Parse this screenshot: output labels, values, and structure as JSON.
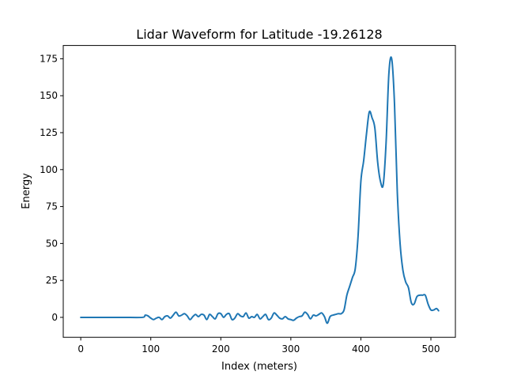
{
  "chart_data": {
    "type": "line",
    "title": "Lidar Waveform for Latitude -19.26128",
    "xlabel": "Index (meters)",
    "ylabel": "Energy",
    "xlim": [
      -25,
      535
    ],
    "ylim": [
      -13.5,
      184
    ],
    "xticks": [
      0,
      100,
      200,
      300,
      400,
      500
    ],
    "yticks": [
      0,
      25,
      50,
      75,
      100,
      125,
      150,
      175
    ],
    "grid": false,
    "legend": "none",
    "line_color": "#1f77b4",
    "series": [
      {
        "x": [
          0,
          30,
          60,
          88,
          92,
          96,
          100,
          104,
          108,
          112,
          116,
          120,
          124,
          128,
          132,
          136,
          140,
          144,
          148,
          152,
          156,
          160,
          164,
          168,
          172,
          176,
          180,
          184,
          188,
          192,
          196,
          200,
          204,
          208,
          212,
          216,
          220,
          224,
          228,
          232,
          236,
          240,
          244,
          248,
          252,
          256,
          260,
          264,
          268,
          272,
          276,
          280,
          284,
          288,
          292,
          296,
          300,
          304,
          308,
          312,
          316,
          320,
          324,
          328,
          332,
          336,
          340,
          344,
          348,
          352,
          356,
          360,
          364,
          368,
          372,
          376,
          380,
          384,
          388,
          392,
          396,
          400,
          404,
          408,
          412,
          416,
          420,
          424,
          428,
          432,
          436,
          440,
          444,
          448,
          452,
          456,
          460,
          464,
          468,
          472,
          476,
          480,
          484,
          488,
          492,
          496,
          500,
          504,
          508,
          511
        ],
        "y": [
          0,
          0,
          0,
          0,
          1.5,
          1,
          -0.5,
          -1.5,
          -0.5,
          0,
          -1.5,
          0.5,
          1,
          -0.5,
          1.5,
          3.5,
          1,
          1.5,
          2.5,
          1,
          -1.5,
          0.5,
          2,
          0.5,
          2,
          1.5,
          -1.5,
          2,
          0.5,
          -1,
          2.5,
          2.5,
          0,
          2,
          2.5,
          -1.5,
          -0.5,
          2.5,
          1,
          0.5,
          3,
          -0.5,
          0.5,
          0,
          2,
          -1,
          0.5,
          2,
          -1.5,
          -0.5,
          3,
          1.5,
          -0.5,
          -1,
          0.5,
          -1,
          -1.5,
          -2,
          -0.5,
          0.5,
          1,
          3.5,
          2,
          -1,
          1.5,
          1,
          2,
          3,
          0.5,
          -4,
          0.5,
          1.5,
          2,
          2.5,
          2.5,
          5,
          15,
          21,
          27,
          33,
          55,
          92,
          106,
          124,
          139,
          135,
          128,
          105,
          92,
          90,
          118,
          165,
          175,
          145,
          85,
          50,
          32,
          24,
          20,
          10,
          9,
          14,
          15,
          15,
          15,
          9,
          5,
          5,
          6,
          4.5
        ]
      }
    ]
  }
}
